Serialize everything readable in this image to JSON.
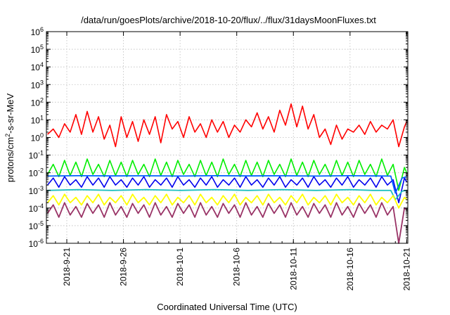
{
  "chart_data": {
    "type": "line",
    "title": "/data/run/goesPlots/archive/2018-10-20/flux/../flux/31daysMoonFluxes.txt",
    "xlabel": "Coordinated Universal Time (UTC)",
    "ylabel_parts": [
      "protons/cm",
      "2",
      "-s-sr-MeV"
    ],
    "y_scale": "log",
    "ylim_exponents": [
      -6,
      6
    ],
    "y_tick_exponents": [
      -6,
      -5,
      -4,
      -3,
      -2,
      -1,
      0,
      1,
      2,
      3,
      4,
      5,
      6
    ],
    "y_tick_base": "10",
    "xlim_days": [
      -1.8,
      30.1
    ],
    "x_ticks": [
      {
        "day": 0,
        "label": "2018-9-21"
      },
      {
        "day": 5,
        "label": "2018-9-26"
      },
      {
        "day": 10,
        "label": "2018-10-1"
      },
      {
        "day": 15,
        "label": "2018-10-6"
      },
      {
        "day": 20,
        "label": "2018-10-11"
      },
      {
        "day": 25,
        "label": "2018-10-16"
      },
      {
        "day": 30,
        "label": "2018-10-21"
      }
    ],
    "grid": true,
    "series": [
      {
        "color": "#ff0000",
        "days": [
          -1.7,
          -1.2,
          -0.7,
          -0.2,
          0.3,
          0.8,
          1.3,
          1.8,
          2.3,
          2.8,
          3.3,
          3.8,
          4.3,
          4.8,
          5.3,
          5.8,
          6.3,
          6.8,
          7.3,
          7.8,
          8.3,
          8.8,
          9.3,
          9.8,
          10.3,
          10.8,
          11.3,
          11.8,
          12.3,
          12.8,
          13.3,
          13.8,
          14.3,
          14.8,
          15.3,
          15.8,
          16.3,
          16.8,
          17.3,
          17.8,
          18.3,
          18.8,
          19.3,
          19.8,
          20.3,
          20.8,
          21.3,
          21.8,
          22.3,
          22.8,
          23.3,
          23.8,
          24.3,
          24.8,
          25.3,
          25.8,
          26.3,
          26.8,
          27.3,
          27.8,
          28.3,
          28.8,
          29.3,
          29.8,
          30.0
        ],
        "values": [
          1.5,
          3,
          1,
          6,
          2,
          20,
          1.5,
          30,
          2,
          15,
          0.8,
          5,
          0.3,
          15,
          1,
          8,
          0.6,
          10,
          1.5,
          15,
          0.5,
          20,
          3,
          8,
          1,
          15,
          2,
          6,
          1,
          10,
          2,
          8,
          1,
          5,
          2,
          10,
          4,
          25,
          3,
          15,
          2,
          35,
          5,
          80,
          4,
          60,
          3,
          20,
          1,
          3,
          0.4,
          5,
          0.8,
          3,
          2,
          5,
          1.5,
          8,
          2,
          5,
          3,
          10,
          0.3,
          4,
          8
        ]
      },
      {
        "color": "#00ee00",
        "days": [
          -1.7,
          -1.2,
          -0.7,
          -0.2,
          0.3,
          0.8,
          1.3,
          1.8,
          2.3,
          2.8,
          3.3,
          3.8,
          4.3,
          4.8,
          5.3,
          5.8,
          6.3,
          6.8,
          7.3,
          7.8,
          8.3,
          8.8,
          9.3,
          9.8,
          10.3,
          10.8,
          11.3,
          11.8,
          12.3,
          12.8,
          13.3,
          13.8,
          14.3,
          14.8,
          15.3,
          15.8,
          16.3,
          16.8,
          17.3,
          17.8,
          18.3,
          18.8,
          19.3,
          19.8,
          20.3,
          20.8,
          21.3,
          21.8,
          22.3,
          22.8,
          23.3,
          23.8,
          24.3,
          24.8,
          25.3,
          25.8,
          26.3,
          26.8,
          27.3,
          27.8,
          28.3,
          28.8,
          29.3,
          29.8,
          30.0
        ],
        "values": [
          0.008,
          0.03,
          0.006,
          0.05,
          0.007,
          0.04,
          0.006,
          0.06,
          0.008,
          0.03,
          0.006,
          0.05,
          0.007,
          0.04,
          0.006,
          0.05,
          0.008,
          0.03,
          0.006,
          0.06,
          0.007,
          0.04,
          0.006,
          0.05,
          0.008,
          0.03,
          0.006,
          0.05,
          0.007,
          0.04,
          0.006,
          0.06,
          0.008,
          0.03,
          0.006,
          0.05,
          0.007,
          0.04,
          0.006,
          0.05,
          0.008,
          0.03,
          0.006,
          0.06,
          0.007,
          0.04,
          0.006,
          0.05,
          0.008,
          0.03,
          0.006,
          0.05,
          0.007,
          0.04,
          0.006,
          0.05,
          0.008,
          0.03,
          0.006,
          0.06,
          0.007,
          0.03,
          0.001,
          0.02,
          0.01
        ]
      },
      {
        "color": "#0000ee",
        "days": [
          -1.7,
          -1.2,
          -0.7,
          -0.2,
          0.3,
          0.8,
          1.3,
          1.8,
          2.3,
          2.8,
          3.3,
          3.8,
          4.3,
          4.8,
          5.3,
          5.8,
          6.3,
          6.8,
          7.3,
          7.8,
          8.3,
          8.8,
          9.3,
          9.8,
          10.3,
          10.8,
          11.3,
          11.8,
          12.3,
          12.8,
          13.3,
          13.8,
          14.3,
          14.8,
          15.3,
          15.8,
          16.3,
          16.8,
          17.3,
          17.8,
          18.3,
          18.8,
          19.3,
          19.8,
          20.3,
          20.8,
          21.3,
          21.8,
          22.3,
          22.8,
          23.3,
          23.8,
          24.3,
          24.8,
          25.3,
          25.8,
          26.3,
          26.8,
          27.3,
          27.8,
          28.3,
          28.8,
          29.3,
          29.8,
          30.0
        ],
        "values": [
          0.002,
          0.005,
          0.0015,
          0.006,
          0.002,
          0.004,
          0.0015,
          0.006,
          0.002,
          0.005,
          0.0015,
          0.006,
          0.002,
          0.004,
          0.0015,
          0.005,
          0.002,
          0.006,
          0.0015,
          0.004,
          0.002,
          0.005,
          0.0015,
          0.006,
          0.002,
          0.004,
          0.0015,
          0.005,
          0.002,
          0.006,
          0.0015,
          0.004,
          0.002,
          0.005,
          0.0015,
          0.006,
          0.002,
          0.004,
          0.0015,
          0.005,
          0.002,
          0.006,
          0.0015,
          0.004,
          0.002,
          0.005,
          0.0015,
          0.006,
          0.002,
          0.004,
          0.0015,
          0.005,
          0.002,
          0.006,
          0.0015,
          0.004,
          0.002,
          0.005,
          0.0015,
          0.006,
          0.002,
          0.004,
          0.0002,
          0.005,
          0.003
        ]
      },
      {
        "color": "#0060ff",
        "days": [
          -1.7,
          1.0,
          4.0,
          7.0,
          10.0,
          13.0,
          16.0,
          19.0,
          22.0,
          25.0,
          27.0,
          28.6,
          29.0,
          29.6,
          30.0
        ],
        "values": [
          0.0065,
          0.0068,
          0.0066,
          0.0067,
          0.0065,
          0.0068,
          0.0066,
          0.0067,
          0.0065,
          0.0068,
          0.0066,
          0.0065,
          0.0007,
          0.005,
          0.006
        ]
      },
      {
        "color": "#20c0c0",
        "days": [
          -1.7,
          1.0,
          4.0,
          7.0,
          10.0,
          13.0,
          16.0,
          19.0,
          22.0,
          25.0,
          27.0,
          28.6,
          29.0,
          29.6,
          30.0
        ],
        "values": [
          0.001,
          0.0011,
          0.001,
          0.0011,
          0.001,
          0.0011,
          0.001,
          0.0011,
          0.001,
          0.0011,
          0.001,
          0.001,
          0.0003,
          0.0009,
          0.001
        ]
      },
      {
        "color": "#ffff00",
        "days": [
          -1.7,
          -1.2,
          -0.7,
          -0.2,
          0.3,
          0.8,
          1.3,
          1.8,
          2.3,
          2.8,
          3.3,
          3.8,
          4.3,
          4.8,
          5.3,
          5.8,
          6.3,
          6.8,
          7.3,
          7.8,
          8.3,
          8.8,
          9.3,
          9.8,
          10.3,
          10.8,
          11.3,
          11.8,
          12.3,
          12.8,
          13.3,
          13.8,
          14.3,
          14.8,
          15.3,
          15.8,
          16.3,
          16.8,
          17.3,
          17.8,
          18.3,
          18.8,
          19.3,
          19.8,
          20.3,
          20.8,
          21.3,
          21.8,
          22.3,
          22.8,
          23.3,
          23.8,
          24.3,
          24.8,
          25.3,
          25.8,
          26.3,
          26.8,
          27.3,
          27.8,
          28.3,
          28.8,
          29.3,
          29.8,
          30.0
        ],
        "values": [
          0.0002,
          0.0005,
          0.00015,
          0.0006,
          0.0002,
          0.0004,
          0.00015,
          0.0005,
          0.0002,
          0.0006,
          0.00015,
          0.0004,
          0.0002,
          0.0005,
          0.00015,
          0.0006,
          0.0002,
          0.0004,
          0.00015,
          0.0005,
          0.0002,
          0.0006,
          0.00015,
          0.0004,
          0.0002,
          0.0005,
          0.00015,
          0.0006,
          0.0002,
          0.0004,
          0.00015,
          0.0005,
          0.0002,
          0.0006,
          0.00015,
          0.0004,
          0.0002,
          0.0005,
          0.00015,
          0.0006,
          0.0002,
          0.0004,
          0.00015,
          0.0005,
          0.0002,
          0.0006,
          0.00015,
          0.0004,
          0.0002,
          0.0005,
          0.00015,
          0.0006,
          0.0002,
          0.0004,
          0.00015,
          0.0005,
          0.0002,
          0.0006,
          0.00015,
          0.0004,
          0.0002,
          0.0005,
          0.0001,
          0.0004,
          0.0003
        ]
      },
      {
        "color": "#993366",
        "days": [
          -1.7,
          -1.2,
          -0.7,
          -0.2,
          0.3,
          0.8,
          1.3,
          1.8,
          2.3,
          2.8,
          3.3,
          3.8,
          4.3,
          4.8,
          5.3,
          5.8,
          6.3,
          6.8,
          7.3,
          7.8,
          8.3,
          8.8,
          9.3,
          9.8,
          10.3,
          10.8,
          11.3,
          11.8,
          12.3,
          12.8,
          13.3,
          13.8,
          14.3,
          14.8,
          15.3,
          15.8,
          16.3,
          16.8,
          17.3,
          17.8,
          18.3,
          18.8,
          19.3,
          19.8,
          20.3,
          20.8,
          21.3,
          21.8,
          22.3,
          22.8,
          23.3,
          23.8,
          24.3,
          24.8,
          25.3,
          25.8,
          26.3,
          26.8,
          27.3,
          27.8,
          28.3,
          28.8,
          29.3,
          29.8,
          30.0
        ],
        "values": [
          5e-05,
          0.00015,
          3e-05,
          0.0002,
          4e-05,
          0.00012,
          3e-05,
          0.00018,
          5e-05,
          0.00015,
          3e-05,
          0.0002,
          4e-05,
          0.00012,
          3e-05,
          0.00018,
          5e-05,
          0.00015,
          3e-05,
          0.0002,
          4e-05,
          0.00012,
          3e-05,
          0.00018,
          5e-05,
          0.00015,
          3e-05,
          0.0002,
          4e-05,
          0.00012,
          3e-05,
          0.00018,
          5e-05,
          0.00015,
          3e-05,
          0.0002,
          4e-05,
          0.00012,
          3e-05,
          0.00018,
          5e-05,
          0.00015,
          3e-05,
          0.0002,
          4e-05,
          0.00012,
          3e-05,
          0.00018,
          5e-05,
          0.00015,
          3e-05,
          0.0002,
          4e-05,
          0.00012,
          3e-05,
          0.00018,
          5e-05,
          0.00015,
          3e-05,
          0.0002,
          4e-05,
          0.00012,
          1e-06,
          0.0001,
          8e-05
        ]
      }
    ]
  }
}
